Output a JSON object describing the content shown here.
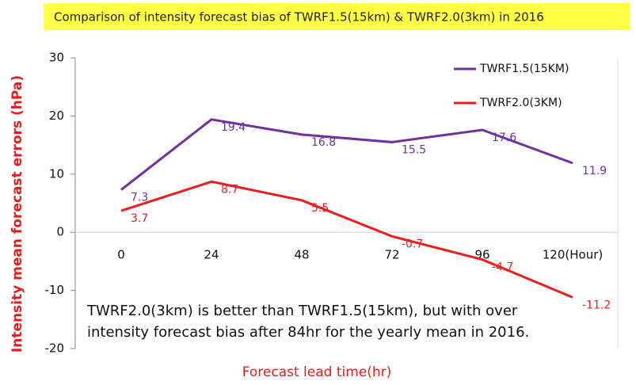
{
  "chart_data": {
    "type": "line",
    "title": "Comparison of intensity forecast bias of TWRF1.5(15km) & TWRF2.0(3km) in 2016",
    "y_label": "Intensity mean forecast errors (hPa)",
    "x_label": "Forecast lead time(hr)",
    "categories": [
      "0",
      "24",
      "48",
      "72",
      "96",
      "120(Hour)"
    ],
    "series": [
      {
        "name": "TWRF1.5(15KM)",
        "color": "#7030a0",
        "values": [
          7.3,
          19.4,
          16.8,
          15.5,
          17.6,
          11.9
        ]
      },
      {
        "name": "TWRF2.0(3KM)",
        "color": "#ee1c1c",
        "values": [
          3.7,
          8.7,
          5.5,
          -0.7,
          -4.7,
          -11.2
        ]
      }
    ],
    "ylim": [
      -20,
      30
    ],
    "yticks": [
      -20,
      -10,
      0,
      10,
      20,
      30
    ],
    "grid": false,
    "annotation": [
      "TWRF2.0(3km) is better than TWRF1.5(15km), but with over",
      "intensity forecast bias after 84hr for the yearly mean in 2016."
    ]
  }
}
